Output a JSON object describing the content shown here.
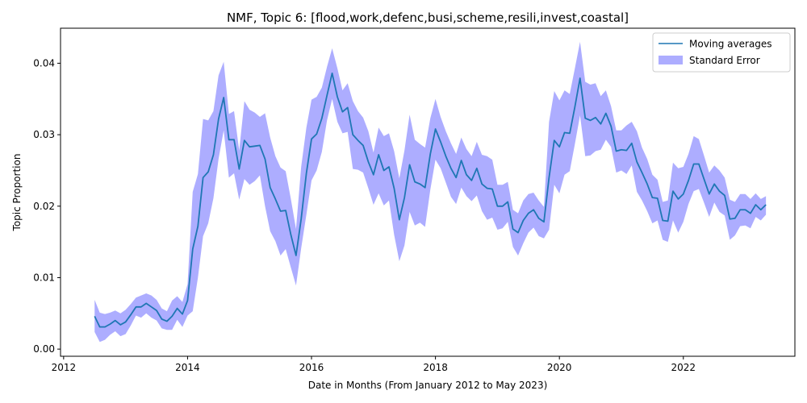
{
  "chart_data": {
    "type": "line",
    "title": "NMF, Topic 6: [flood,work,defenc,busi,scheme,resili,invest,coastal]",
    "xlabel": "Date in Months (From January 2012 to May 2023)",
    "ylabel": "Topic Proportion",
    "xlim": [
      2011.95,
      2023.8
    ],
    "ylim": [
      -0.001,
      0.0449
    ],
    "xticks": [
      2012,
      2014,
      2016,
      2018,
      2020,
      2022
    ],
    "xtick_labels": [
      "2012",
      "2014",
      "2016",
      "2018",
      "2020",
      "2022"
    ],
    "yticks": [
      0.0,
      0.01,
      0.02,
      0.03,
      0.04
    ],
    "ytick_labels": [
      "0.00",
      "0.01",
      "0.02",
      "0.03",
      "0.04"
    ],
    "grid": false,
    "legend_position": "top-right",
    "colors": {
      "line": "#1f77b4",
      "band": "#0000ff",
      "band_opacity": 0.32
    },
    "series": [
      {
        "name": "Moving averages",
        "kind": "line",
        "x": [
          2012.5,
          2012.583,
          2012.667,
          2012.75,
          2012.833,
          2012.917,
          2013.0,
          2013.083,
          2013.167,
          2013.25,
          2013.333,
          2013.417,
          2013.5,
          2013.583,
          2013.667,
          2013.75,
          2013.833,
          2013.917,
          2014.0,
          2014.083,
          2014.167,
          2014.25,
          2014.333,
          2014.417,
          2014.5,
          2014.583,
          2014.667,
          2014.75,
          2014.833,
          2014.917,
          2015.0,
          2015.083,
          2015.167,
          2015.25,
          2015.333,
          2015.417,
          2015.5,
          2015.583,
          2015.667,
          2015.75,
          2015.833,
          2015.917,
          2016.0,
          2016.083,
          2016.167,
          2016.25,
          2016.333,
          2016.417,
          2016.5,
          2016.583,
          2016.667,
          2016.75,
          2016.833,
          2016.917,
          2017.0,
          2017.083,
          2017.167,
          2017.25,
          2017.333,
          2017.417,
          2017.5,
          2017.583,
          2017.667,
          2017.75,
          2017.833,
          2017.917,
          2018.0,
          2018.083,
          2018.167,
          2018.25,
          2018.333,
          2018.417,
          2018.5,
          2018.583,
          2018.667,
          2018.75,
          2018.833,
          2018.917,
          2019.0,
          2019.083,
          2019.167,
          2019.25,
          2019.333,
          2019.417,
          2019.5,
          2019.583,
          2019.667,
          2019.75,
          2019.833,
          2019.917,
          2020.0,
          2020.083,
          2020.167,
          2020.25,
          2020.333,
          2020.417,
          2020.5,
          2020.583,
          2020.667,
          2020.75,
          2020.833,
          2020.917,
          2021.0,
          2021.083,
          2021.167,
          2021.25,
          2021.333,
          2021.417,
          2021.5,
          2021.583,
          2021.667,
          2021.75,
          2021.833,
          2021.917,
          2022.0,
          2022.083,
          2022.167,
          2022.25,
          2022.333,
          2022.417,
          2022.5,
          2022.583,
          2022.667,
          2022.75,
          2022.833,
          2022.917,
          2023.0,
          2023.083,
          2023.167,
          2023.25,
          2023.333
        ],
        "y": [
          0.0046,
          0.0031,
          0.0031,
          0.0035,
          0.004,
          0.0034,
          0.0038,
          0.0048,
          0.0059,
          0.0059,
          0.0064,
          0.0059,
          0.0054,
          0.0042,
          0.0039,
          0.0046,
          0.0057,
          0.0049,
          0.0068,
          0.014,
          0.0172,
          0.024,
          0.0248,
          0.0272,
          0.0322,
          0.0352,
          0.0293,
          0.0293,
          0.0252,
          0.0292,
          0.0283,
          0.0284,
          0.0285,
          0.0266,
          0.0226,
          0.021,
          0.0193,
          0.0194,
          0.016,
          0.0131,
          0.0182,
          0.0246,
          0.0294,
          0.0301,
          0.0323,
          0.0355,
          0.0386,
          0.0353,
          0.0332,
          0.0338,
          0.03,
          0.0292,
          0.0285,
          0.0262,
          0.0244,
          0.0272,
          0.025,
          0.0255,
          0.0225,
          0.0181,
          0.0212,
          0.0258,
          0.0234,
          0.0231,
          0.0226,
          0.0273,
          0.0308,
          0.029,
          0.027,
          0.0253,
          0.024,
          0.0264,
          0.0244,
          0.0236,
          0.0253,
          0.0231,
          0.0225,
          0.0224,
          0.02,
          0.02,
          0.0206,
          0.0168,
          0.0163,
          0.018,
          0.019,
          0.0195,
          0.0183,
          0.0178,
          0.024,
          0.0292,
          0.0283,
          0.0303,
          0.0302,
          0.0339,
          0.0379,
          0.0323,
          0.032,
          0.0324,
          0.0315,
          0.033,
          0.0312,
          0.0277,
          0.0279,
          0.0278,
          0.0288,
          0.0262,
          0.0247,
          0.0231,
          0.0212,
          0.0211,
          0.018,
          0.0179,
          0.0221,
          0.021,
          0.0217,
          0.0236,
          0.0259,
          0.0259,
          0.0238,
          0.0217,
          0.0231,
          0.0221,
          0.0215,
          0.0182,
          0.0183,
          0.0195,
          0.0195,
          0.019,
          0.0202,
          0.0195,
          0.0202
        ]
      },
      {
        "name": "Standard Error",
        "kind": "band",
        "upper": [
          0.0069,
          0.0051,
          0.0049,
          0.0051,
          0.0054,
          0.005,
          0.0055,
          0.0063,
          0.0072,
          0.0075,
          0.0078,
          0.0075,
          0.0069,
          0.0057,
          0.0053,
          0.0068,
          0.0074,
          0.0066,
          0.0091,
          0.022,
          0.0245,
          0.0322,
          0.032,
          0.0333,
          0.0383,
          0.0402,
          0.0329,
          0.0333,
          0.0278,
          0.0347,
          0.0335,
          0.0331,
          0.0325,
          0.033,
          0.0296,
          0.027,
          0.0254,
          0.0249,
          0.021,
          0.0168,
          0.0255,
          0.031,
          0.0349,
          0.0353,
          0.0366,
          0.0395,
          0.0421,
          0.0393,
          0.0362,
          0.0372,
          0.0347,
          0.0333,
          0.0324,
          0.0305,
          0.0275,
          0.031,
          0.0298,
          0.0302,
          0.0277,
          0.0239,
          0.0278,
          0.0328,
          0.0293,
          0.0287,
          0.0282,
          0.0323,
          0.035,
          0.0325,
          0.0305,
          0.0288,
          0.0273,
          0.0296,
          0.028,
          0.027,
          0.029,
          0.0272,
          0.027,
          0.0265,
          0.023,
          0.023,
          0.0234,
          0.0195,
          0.019,
          0.0208,
          0.0217,
          0.0219,
          0.0208,
          0.0199,
          0.0318,
          0.0361,
          0.0348,
          0.0362,
          0.0357,
          0.0393,
          0.043,
          0.0374,
          0.037,
          0.0372,
          0.0354,
          0.0362,
          0.034,
          0.0306,
          0.0306,
          0.0313,
          0.0318,
          0.0305,
          0.0282,
          0.0266,
          0.0244,
          0.0237,
          0.0206,
          0.0208,
          0.0261,
          0.0253,
          0.0255,
          0.0273,
          0.0298,
          0.0294,
          0.0271,
          0.0247,
          0.0257,
          0.025,
          0.024,
          0.0209,
          0.0206,
          0.0217,
          0.0217,
          0.021,
          0.0218,
          0.021,
          0.0214
        ],
        "lower": [
          0.0024,
          0.001,
          0.0013,
          0.002,
          0.0025,
          0.0018,
          0.0021,
          0.0033,
          0.0047,
          0.0044,
          0.005,
          0.0044,
          0.004,
          0.0029,
          0.0027,
          0.0027,
          0.0041,
          0.0031,
          0.0047,
          0.0053,
          0.01,
          0.0158,
          0.0176,
          0.0211,
          0.0266,
          0.0306,
          0.024,
          0.0246,
          0.0209,
          0.0238,
          0.023,
          0.0235,
          0.0243,
          0.02,
          0.0165,
          0.0151,
          0.0131,
          0.014,
          0.0114,
          0.0089,
          0.0141,
          0.0188,
          0.0236,
          0.025,
          0.0276,
          0.032,
          0.035,
          0.0318,
          0.0302,
          0.0304,
          0.0252,
          0.0251,
          0.0247,
          0.0225,
          0.0202,
          0.0218,
          0.0201,
          0.0208,
          0.016,
          0.0123,
          0.0145,
          0.0192,
          0.0173,
          0.0177,
          0.0171,
          0.0223,
          0.0265,
          0.0253,
          0.0233,
          0.0213,
          0.0203,
          0.0226,
          0.0214,
          0.0207,
          0.0215,
          0.0193,
          0.0181,
          0.0184,
          0.0167,
          0.0169,
          0.0178,
          0.0143,
          0.0131,
          0.0148,
          0.0163,
          0.017,
          0.0158,
          0.0155,
          0.0167,
          0.023,
          0.0218,
          0.0244,
          0.0249,
          0.0287,
          0.0327,
          0.027,
          0.0271,
          0.0277,
          0.0279,
          0.0293,
          0.0283,
          0.0247,
          0.025,
          0.0245,
          0.0257,
          0.022,
          0.0208,
          0.0193,
          0.0176,
          0.018,
          0.0153,
          0.015,
          0.018,
          0.0163,
          0.0178,
          0.0203,
          0.0221,
          0.0224,
          0.0205,
          0.0185,
          0.0205,
          0.0192,
          0.0187,
          0.0153,
          0.0159,
          0.0172,
          0.0173,
          0.0169,
          0.0185,
          0.018,
          0.0188
        ]
      }
    ]
  }
}
